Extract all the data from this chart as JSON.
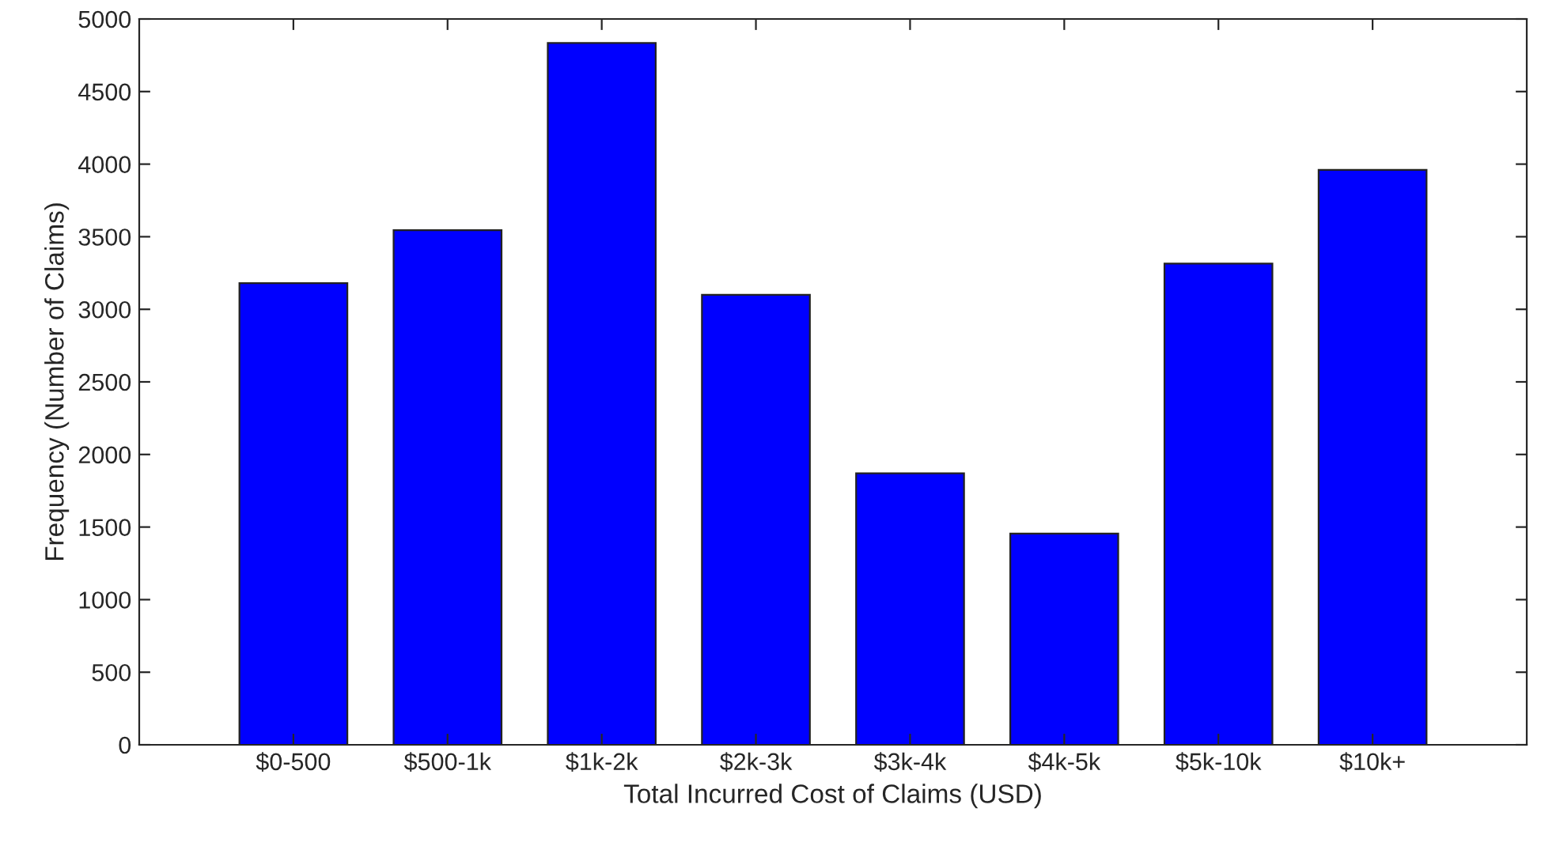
{
  "chart_data": {
    "type": "bar",
    "xlabel": "Total Incurred Cost of Claims (USD)",
    "ylabel": "Frequency (Number of Claims)",
    "categories": [
      "$0-500",
      "$500-1k",
      "$1k-2k",
      "$2k-3k",
      "$3k-4k",
      "$4k-5k",
      "$5k-10k",
      "$10k+"
    ],
    "values": [
      3180,
      3545,
      4835,
      3100,
      1870,
      1455,
      3315,
      3960
    ],
    "color": "#0000ff",
    "ylim": [
      0,
      5000
    ],
    "yticks": [
      0,
      500,
      1000,
      1500,
      2000,
      2500,
      3000,
      3500,
      4000,
      4500,
      5000
    ],
    "grid": false,
    "legend": false
  }
}
